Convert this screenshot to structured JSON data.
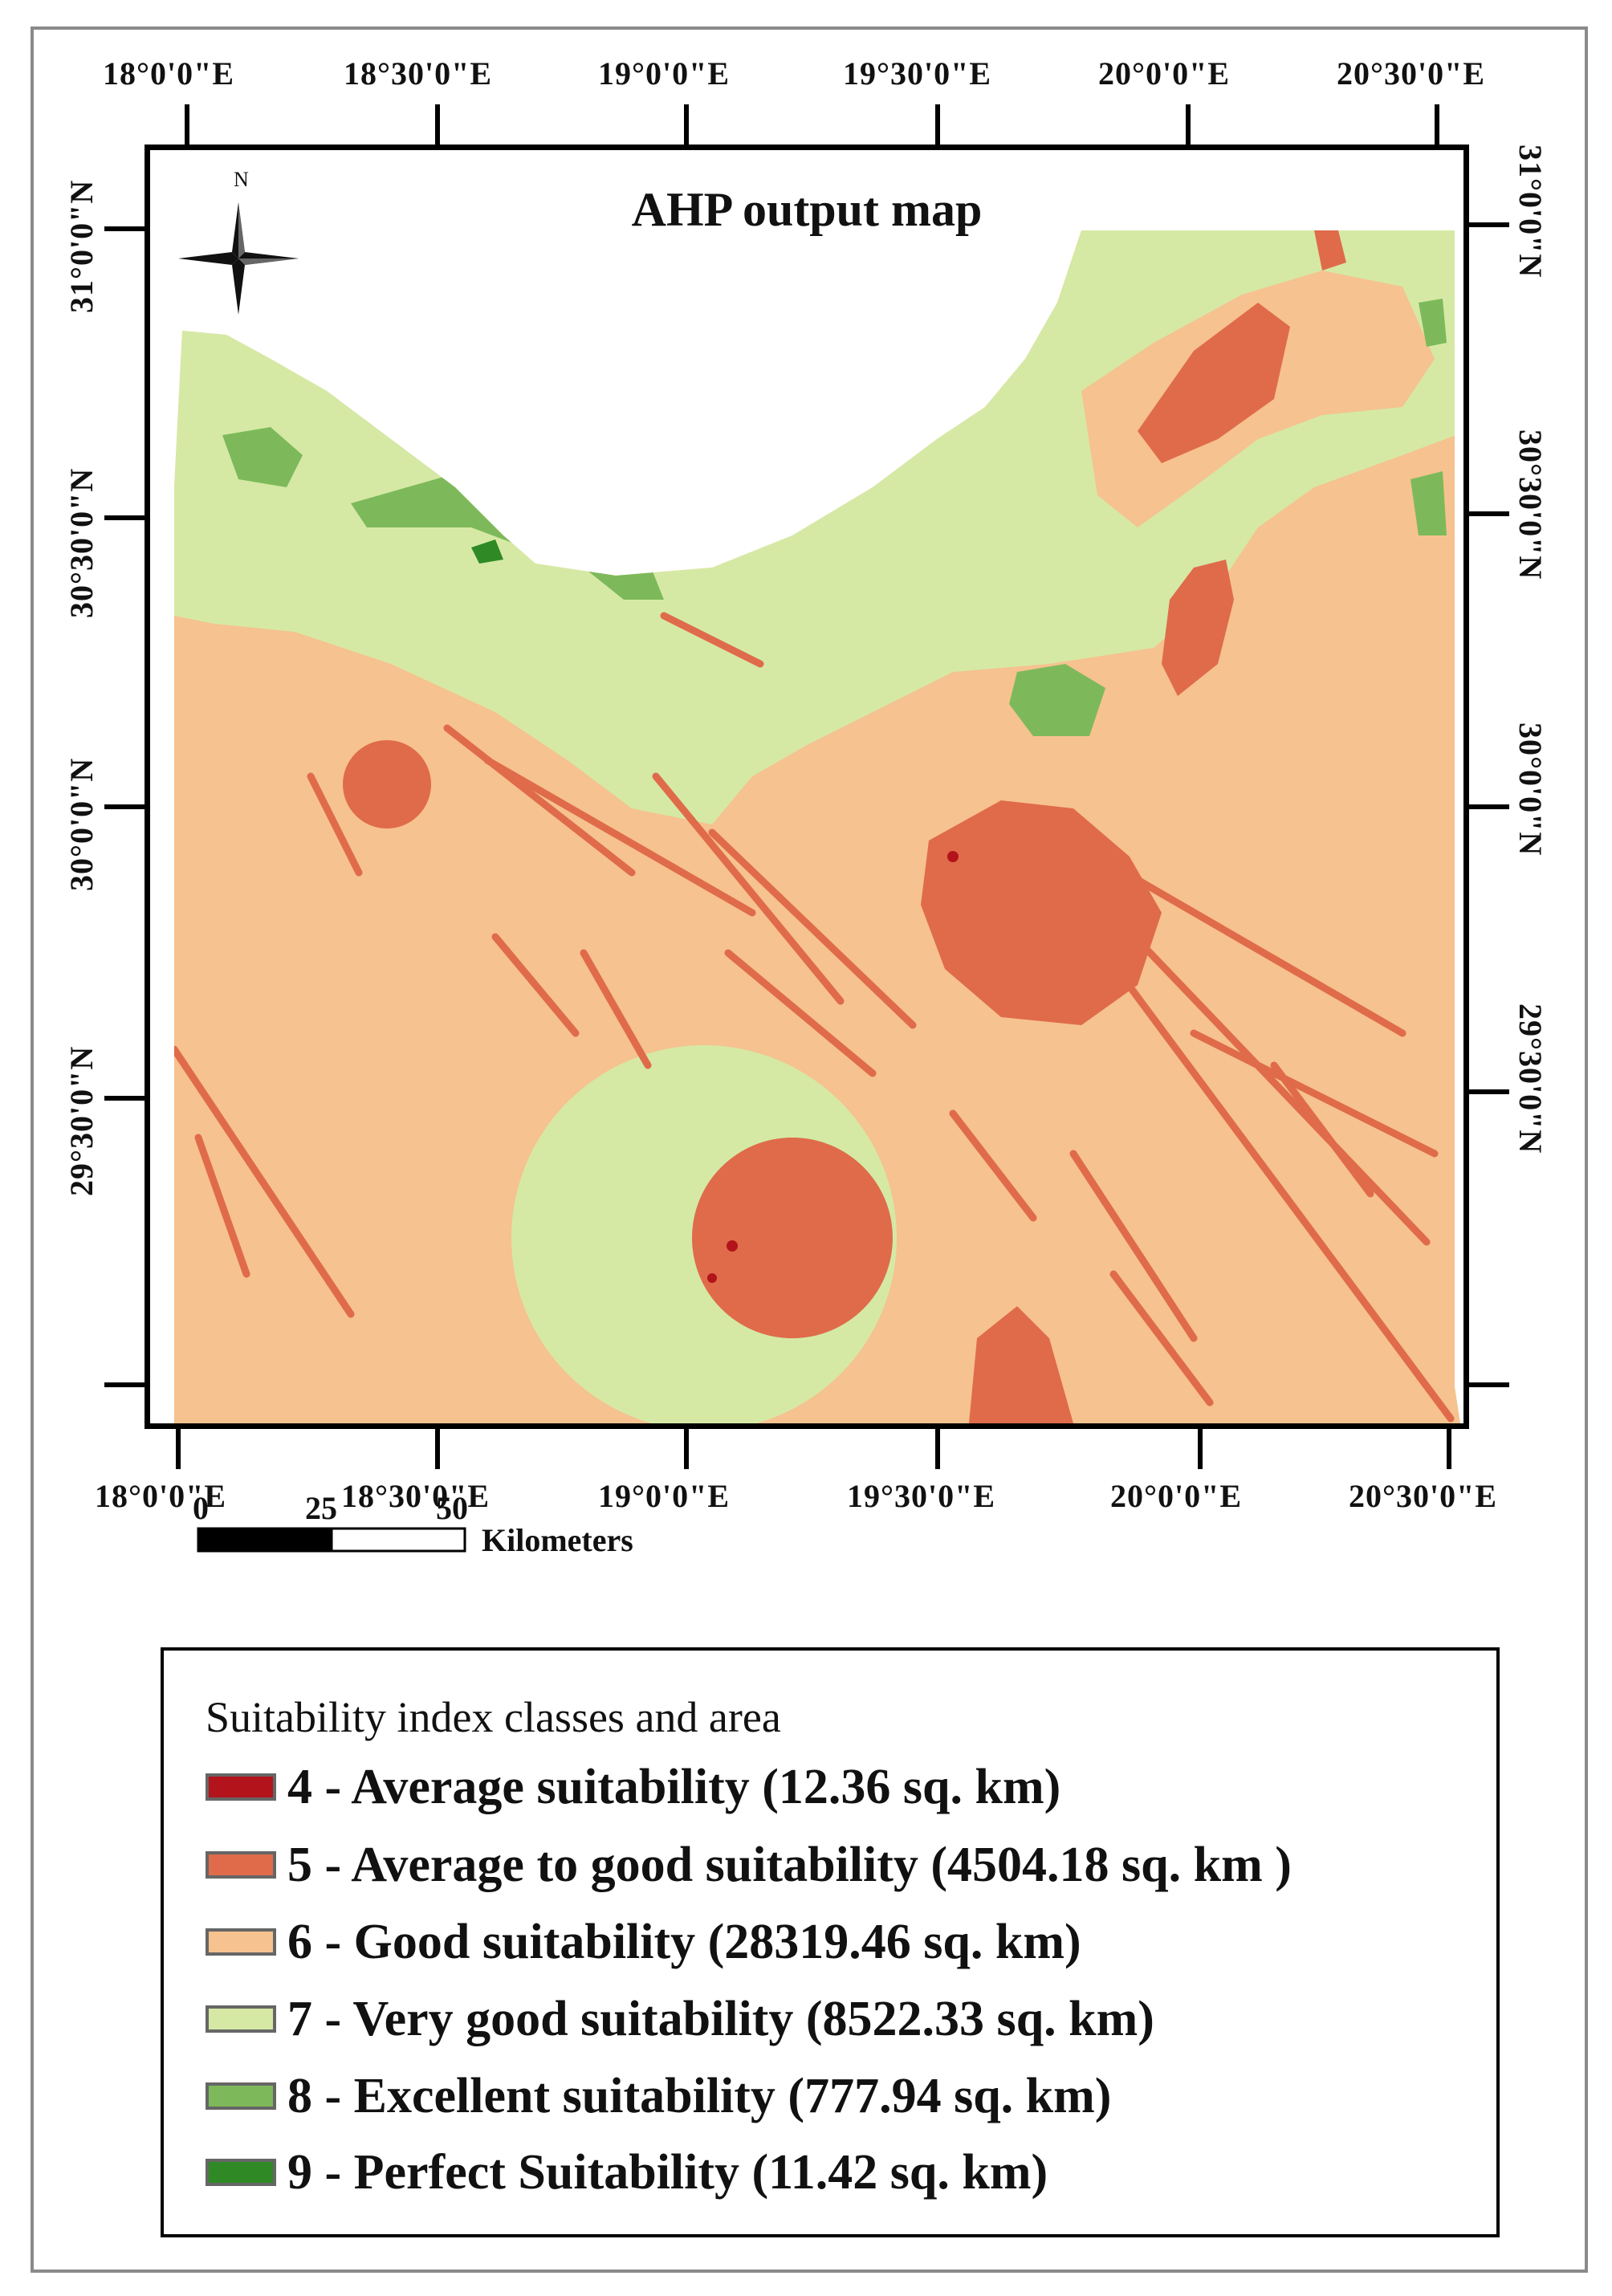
{
  "map": {
    "title": "AHP output map",
    "north_label": "N",
    "lon_ticks": [
      "18°0'0\"E",
      "18°30'0\"E",
      "19°0'0\"E",
      "19°30'0\"E",
      "20°0'0\"E",
      "20°30'0\"E"
    ],
    "lat_ticks": [
      "31°0'0\"N",
      "30°30'0\"N",
      "30°0'0\"N",
      "29°30'0\"N"
    ]
  },
  "scalebar": {
    "labels": [
      "0",
      "25",
      "50"
    ],
    "unit": "Kilometers"
  },
  "legend": {
    "title": "Suitability index classes and area",
    "items": [
      {
        "label": "4 - Average suitability (12.36 sq. km)",
        "color": "#b3131b"
      },
      {
        "label": "5 - Average to good suitability (4504.18 sq. km )",
        "color": "#df6b4a"
      },
      {
        "label": "6 - Good suitability (28319.46 sq. km)",
        "color": "#f6c28f"
      },
      {
        "label": "7 - Very good suitability (8522.33 sq. km)",
        "color": "#d5e9a5"
      },
      {
        "label": "8 - Excellent suitability (777.94 sq. km)",
        "color": "#7db95a"
      },
      {
        "label": "9 - Perfect Suitability (11.42 sq. km)",
        "color": "#2f8a25"
      }
    ]
  },
  "palette": {
    "class4": "#b3131b",
    "class5": "#df6b4a",
    "class6": "#f6c28f",
    "class7": "#d5e9a5",
    "class8": "#7db95a",
    "class9": "#2f8a25"
  }
}
